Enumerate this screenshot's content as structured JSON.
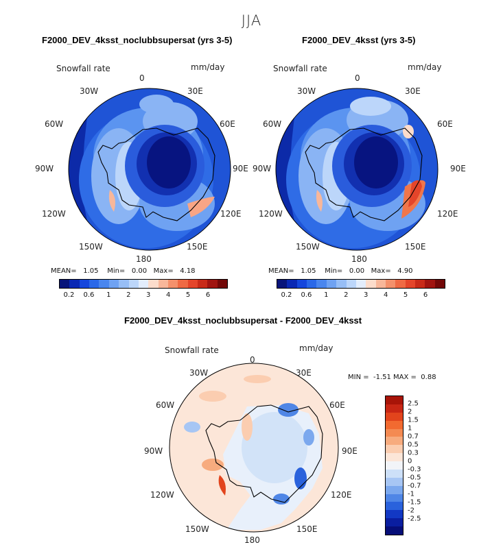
{
  "figure": {
    "season": "JJA"
  },
  "panel_left": {
    "title": "F2000_DEV_4ksst_noclubbsupersat (yrs 3-5)",
    "variable": "Snowfall rate",
    "units": "mm/day",
    "mean_label": "MEAN=",
    "mean_value": "1.05",
    "min_label": "Min=",
    "min_value": "0.00",
    "max_label": "Max=",
    "max_value": "4.18"
  },
  "panel_right": {
    "title": "F2000_DEV_4ksst (yrs 3-5)",
    "variable": "Snowfall rate",
    "units": "mm/day",
    "mean_label": "MEAN=",
    "mean_value": "1.05",
    "min_label": "Min=",
    "min_value": "0.00",
    "max_label": "Max=",
    "max_value": "4.90"
  },
  "panel_diff": {
    "title": "F2000_DEV_4ksst_noclubbsupersat - F2000_DEV_4ksst",
    "variable": "Snowfall rate",
    "units": "mm/day",
    "min_label": "MIN =",
    "min_value": "-1.51",
    "max_label": "MAX =",
    "max_value": "0.88"
  },
  "longitude_labels": {
    "lon_0": "0",
    "lon_30e": "30E",
    "lon_60e": "60E",
    "lon_90e": "90E",
    "lon_120e": "120E",
    "lon_150e": "150E",
    "lon_180": "180",
    "lon_150w": "150W",
    "lon_120w": "120W",
    "lon_90w": "90W",
    "lon_60w": "60W",
    "lon_30w": "30W"
  },
  "colorbar_abs": {
    "colors": [
      "#08147a",
      "#0a28b4",
      "#1546dc",
      "#2a68e8",
      "#4a86ee",
      "#6fa2f2",
      "#97bef6",
      "#bcd6fa",
      "#e3edfc",
      "#fcdccb",
      "#f8b79a",
      "#f4916c",
      "#ef6a44",
      "#e4452a",
      "#c82a18",
      "#a01410",
      "#720808"
    ],
    "ticks": [
      "0.2",
      "0.6",
      "1",
      "2",
      "3",
      "4",
      "5",
      "6"
    ]
  },
  "colorbar_diff": {
    "colors": [
      "#a81408",
      "#c82614",
      "#e2441c",
      "#f26a30",
      "#f48a52",
      "#f7ab7e",
      "#fbcdb0",
      "#fce6d8",
      "#f2f4f8",
      "#cde0f8",
      "#a7c6f4",
      "#7ba8ee",
      "#4f86e6",
      "#2a62dc",
      "#1238c4",
      "#0a1ea0",
      "#060e78"
    ],
    "ticks": [
      "2.5",
      "2",
      "1.5",
      "1",
      "0.7",
      "0.5",
      "0.3",
      "0",
      "-0.3",
      "-0.5",
      "-0.7",
      "-1",
      "-1.5",
      "-2",
      "-2.5"
    ]
  }
}
